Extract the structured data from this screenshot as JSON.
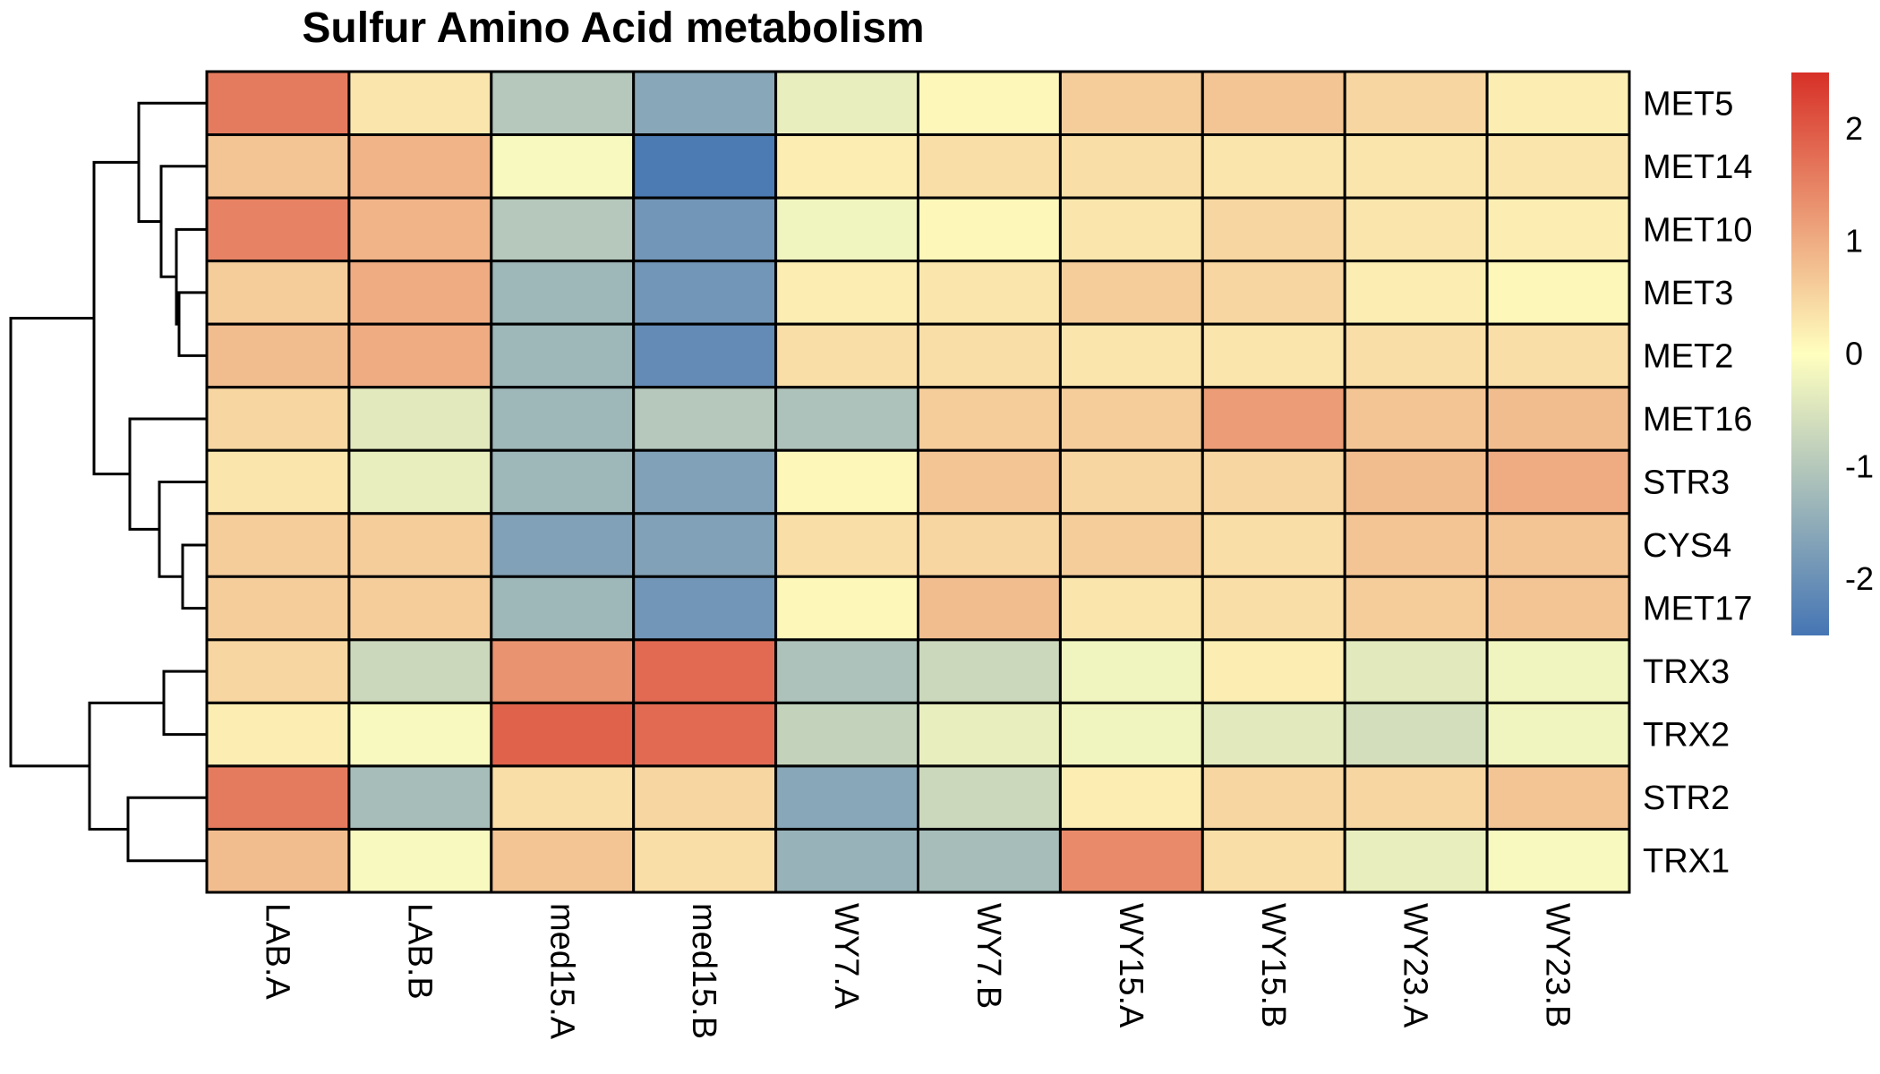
{
  "chart_data": {
    "type": "heatmap",
    "title": "Sulfur Amino Acid metabolism",
    "rows": [
      "MET5",
      "MET14",
      "MET10",
      "MET3",
      "MET2",
      "MET16",
      "STR3",
      "CYS4",
      "MET17",
      "TRX3",
      "TRX2",
      "STR2",
      "TRX1"
    ],
    "columns": [
      "LAB.A",
      "LAB.B",
      "med15.A",
      "med15.B",
      "WY7.A",
      "WY7.B",
      "WY15.A",
      "WY15.B",
      "WY23.A",
      "WY23.B"
    ],
    "values": [
      [
        1.6,
        0.3,
        -1.0,
        -1.6,
        -0.3,
        0.1,
        0.6,
        0.7,
        0.5,
        0.2
      ],
      [
        0.7,
        0.9,
        -0.1,
        -2.4,
        0.2,
        0.4,
        0.4,
        0.3,
        0.3,
        0.3
      ],
      [
        1.5,
        0.9,
        -1.0,
        -1.9,
        -0.2,
        0.1,
        0.3,
        0.5,
        0.3,
        0.2
      ],
      [
        0.6,
        1.0,
        -1.3,
        -1.9,
        0.2,
        0.3,
        0.6,
        0.5,
        0.2,
        0.1
      ],
      [
        0.8,
        1.0,
        -1.3,
        -2.1,
        0.4,
        0.4,
        0.3,
        0.3,
        0.4,
        0.4
      ],
      [
        0.5,
        -0.4,
        -1.3,
        -1.0,
        -1.1,
        0.6,
        0.6,
        1.2,
        0.7,
        0.8
      ],
      [
        0.3,
        -0.3,
        -1.3,
        -1.7,
        0.1,
        0.7,
        0.5,
        0.5,
        0.8,
        1.0
      ],
      [
        0.6,
        0.6,
        -1.7,
        -1.7,
        0.4,
        0.5,
        0.6,
        0.4,
        0.7,
        0.7
      ],
      [
        0.6,
        0.6,
        -1.3,
        -1.9,
        0.1,
        0.8,
        0.3,
        0.4,
        0.6,
        0.7
      ],
      [
        0.5,
        -0.7,
        1.3,
        1.8,
        -1.1,
        -0.7,
        -0.2,
        0.2,
        -0.4,
        -0.2
      ],
      [
        0.2,
        -0.1,
        1.9,
        1.8,
        -0.8,
        -0.3,
        -0.2,
        -0.4,
        -0.6,
        -0.2
      ],
      [
        1.6,
        -1.2,
        0.4,
        0.5,
        -1.6,
        -0.7,
        0.2,
        0.5,
        0.5,
        0.7
      ],
      [
        0.8,
        -0.1,
        0.7,
        0.4,
        -1.4,
        -1.2,
        1.4,
        0.4,
        -0.3,
        -0.1
      ]
    ],
    "row_dendrogram": {
      "merges": [
        [
          -4,
          -5
        ],
        [
          -3,
          1
        ],
        [
          -2,
          2
        ],
        [
          -1,
          3
        ],
        [
          -8,
          -9
        ],
        [
          -7,
          5
        ],
        [
          -6,
          6
        ],
        [
          4,
          7
        ],
        [
          -10,
          -11
        ],
        [
          -12,
          -13
        ],
        [
          9,
          10
        ],
        [
          8,
          11
        ]
      ]
    },
    "colorbar": {
      "ticks": [
        2,
        1,
        0,
        -1,
        -2
      ],
      "range": [
        -2.5,
        2.5
      ]
    },
    "colors": {
      "high": "#D73027",
      "mid": "#FFFFBF",
      "low": "#4575B4"
    },
    "grid": true,
    "legend_position": "right"
  }
}
